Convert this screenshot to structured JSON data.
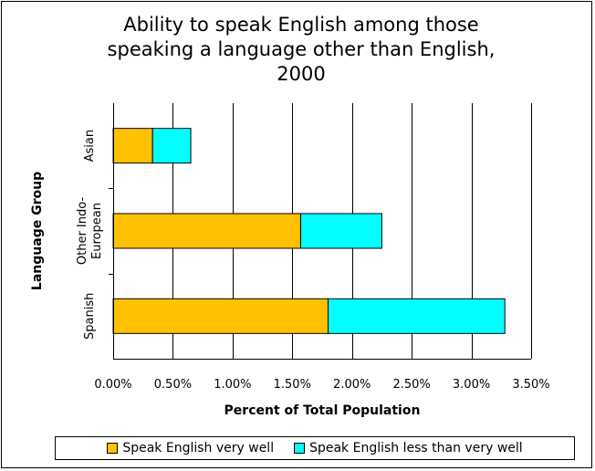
{
  "chart_data": {
    "type": "bar",
    "orientation": "horizontal",
    "stacked": true,
    "title": "Ability to speak English among those speaking a language other than English, 2000",
    "title_lines": [
      "Ability to speak English among those",
      "speaking a language other than English,",
      "2000"
    ],
    "xlabel": "Percent of Total Population",
    "ylabel": "Language Group",
    "xlim": [
      0,
      3.5
    ],
    "x_ticks": [
      "0.00%",
      "0.50%",
      "1.00%",
      "1.50%",
      "2.00%",
      "2.50%",
      "3.00%",
      "3.50%"
    ],
    "categories": [
      "Asian",
      "Other Indo-European",
      "Spanish"
    ],
    "category_label_lines": [
      [
        "Asian"
      ],
      [
        "Other Indo-",
        "European"
      ],
      [
        "Spanish"
      ]
    ],
    "series": [
      {
        "name": "Speak English very well",
        "color": "#ffc000",
        "values": [
          0.33,
          1.57,
          1.8
        ]
      },
      {
        "name": "Speak English less than very well",
        "color": "#00ffff",
        "values": [
          0.32,
          0.68,
          1.48
        ]
      }
    ],
    "grid": "vertical",
    "legend_position": "bottom"
  }
}
